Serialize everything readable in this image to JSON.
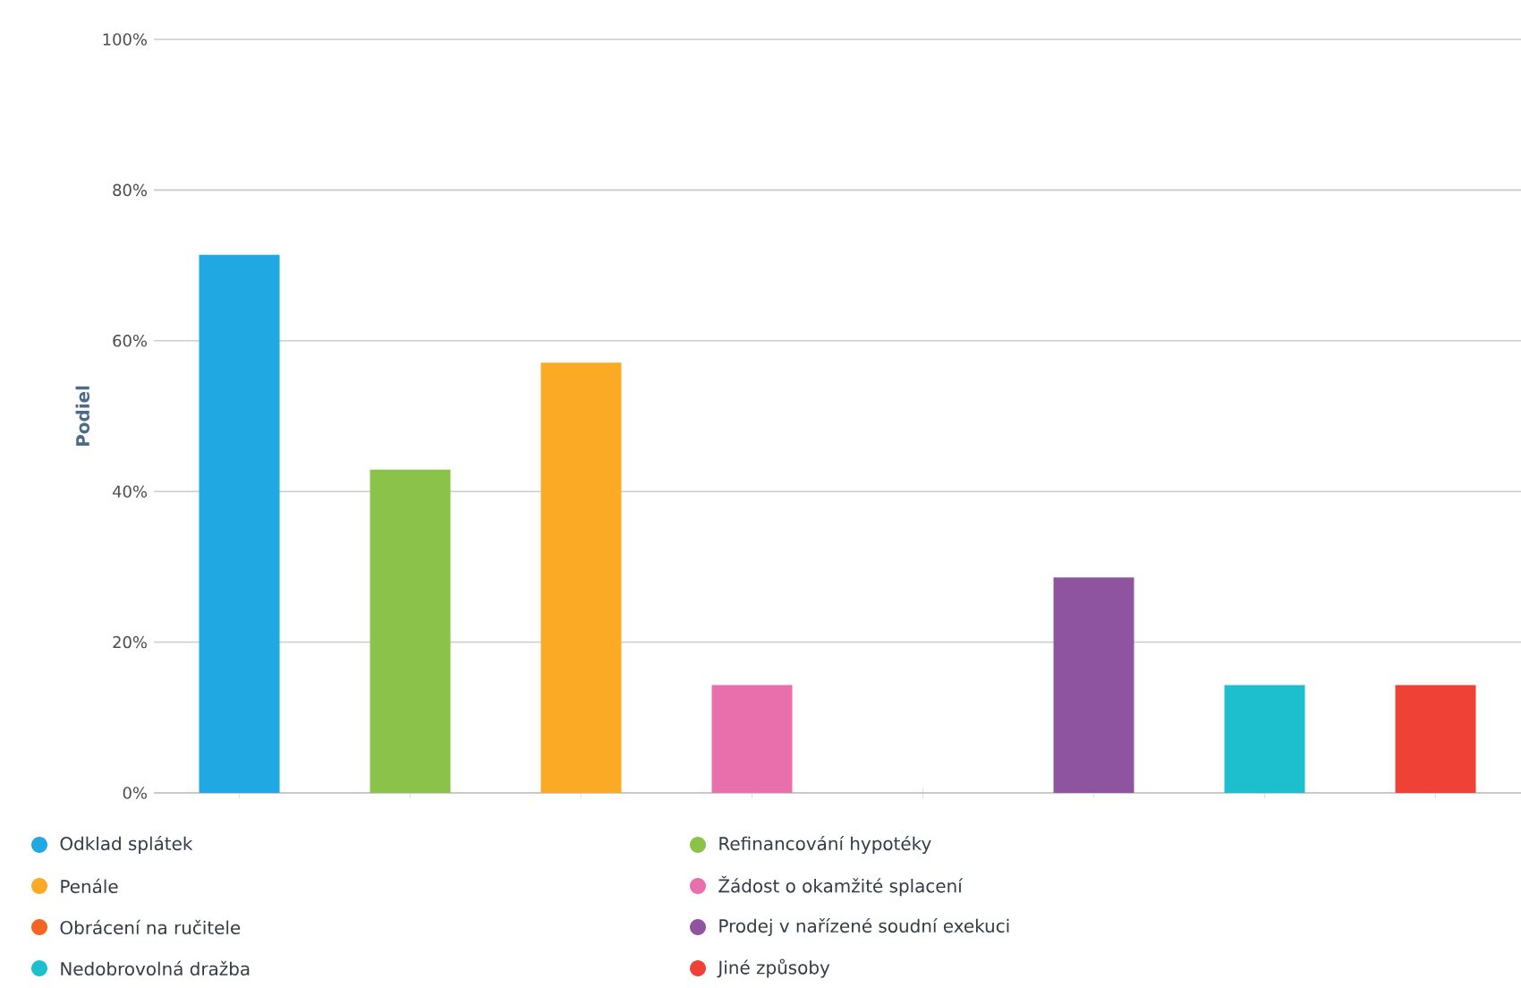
{
  "chart_data": {
    "type": "bar",
    "ylabel": "Podiel",
    "categories": [
      null,
      null,
      null,
      null,
      null,
      null,
      null,
      null
    ],
    "series": [
      {
        "name": "Odklad splátek",
        "color": "#1fa8e1",
        "values": [
          71.4,
          null,
          null,
          null,
          null,
          null,
          null,
          null
        ]
      },
      {
        "name": "Refinancování hypotéky",
        "color": "#8bc34a",
        "values": [
          null,
          42.9,
          null,
          null,
          null,
          null,
          null,
          null
        ]
      },
      {
        "name": "Penále",
        "color": "#fbaa26",
        "values": [
          null,
          null,
          57.1,
          null,
          null,
          null,
          null,
          null
        ]
      },
      {
        "name": "Žádost o okamžité splacení",
        "color": "#e96eac",
        "values": [
          null,
          null,
          null,
          14.3,
          null,
          null,
          null,
          null
        ]
      },
      {
        "name": "Obrácení na ručitele",
        "color": "#f26522",
        "values": [
          null,
          null,
          null,
          null,
          0,
          null,
          null,
          null
        ]
      },
      {
        "name": "Prodej v nařízené soudní exekuci",
        "color": "#8e54a0",
        "values": [
          null,
          null,
          null,
          null,
          null,
          28.6,
          null,
          null
        ]
      },
      {
        "name": "Nedobrovolná dražba",
        "color": "#1dbfcf",
        "values": [
          null,
          null,
          null,
          null,
          null,
          null,
          14.3,
          null
        ]
      },
      {
        "name": "Jiné způsoby",
        "color": "#ef4136",
        "values": [
          null,
          null,
          null,
          null,
          null,
          null,
          null,
          14.3
        ]
      }
    ],
    "ylim": [
      0,
      100
    ],
    "yticks": [
      {
        "value": 0,
        "label": "0%"
      },
      {
        "value": 20,
        "label": "20%"
      },
      {
        "value": 40,
        "label": "40%"
      },
      {
        "value": 60,
        "label": "60%"
      },
      {
        "value": 80,
        "label": "80%"
      },
      {
        "value": 100,
        "label": "100%"
      }
    ],
    "grid": "y",
    "legend": "bottom"
  }
}
